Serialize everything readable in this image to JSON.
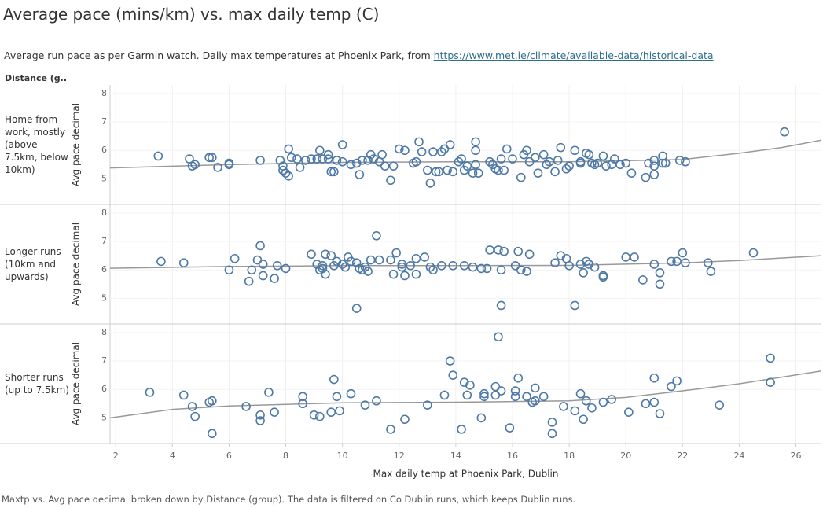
{
  "chart_data": {
    "type": "scatter",
    "title": "Average pace (mins/km) vs. max daily temp (C)",
    "subtitle": "Average run pace as per Garmin watch. Daily max temperatures at Phoenix Park, from",
    "subtitle_link": "https://www.met.ie/climate/available-data/historical-data",
    "facet_header": "Distance (g..",
    "x_label": "Max daily temp at Phoenix Park, Dublin",
    "y_label": "Avg pace decimal",
    "footnote": "Maxtp vs. Avg pace decimal broken down by Distance (group). The data is filtered on Co Dublin runs, which keeps Dublin runs.",
    "xlim": [
      1.8,
      26.9
    ],
    "xticks": [
      2,
      4,
      6,
      8,
      10,
      12,
      14,
      16,
      18,
      20,
      22,
      24,
      26
    ],
    "ylim": [
      4.1,
      8.3
    ],
    "yticks": [
      5,
      6,
      7,
      8
    ],
    "color": "#4e79a7",
    "trend_color": "#999999",
    "grid": true,
    "panels": [
      {
        "label": "Home from work, mostly (above 7.5km, below 10km)",
        "x": [
          3.5,
          4.6,
          4.7,
          4.8,
          5.3,
          5.4,
          5.6,
          6,
          6,
          7.1,
          7.8,
          7.9,
          7.9,
          8,
          8.1,
          8.1,
          8.2,
          8.4,
          8.5,
          8.7,
          8.9,
          9.1,
          9.2,
          9.3,
          9.5,
          9.5,
          9.6,
          9.7,
          9.8,
          10,
          10,
          10.3,
          10.5,
          10.6,
          10.7,
          10.9,
          11,
          11.1,
          11.3,
          11.4,
          11.5,
          11.7,
          11.8,
          12,
          12.2,
          12.5,
          12.6,
          12.7,
          12.8,
          13,
          13.1,
          13.2,
          13.3,
          13.4,
          13.5,
          13.6,
          13.7,
          13.8,
          13.9,
          14.1,
          14.2,
          14.3,
          14.4,
          14.6,
          14.7,
          14.7,
          14.7,
          14.8,
          15.2,
          15.3,
          15.4,
          15.5,
          15.6,
          15.7,
          15.8,
          16,
          16.3,
          16.4,
          16.5,
          16.6,
          16.8,
          16.9,
          17.1,
          17.2,
          17.3,
          17.5,
          17.6,
          17.7,
          17.9,
          18,
          18.2,
          18.4,
          18.4,
          18.6,
          18.7,
          18.8,
          18.9,
          19,
          19.2,
          19.3,
          19.5,
          19.6,
          19.8,
          20,
          20.2,
          20.7,
          20.8,
          21,
          21,
          21,
          21.3,
          21.3,
          21.4,
          21.9,
          22.1,
          25.6
        ],
        "y": [
          5.8,
          5.7,
          5.45,
          5.5,
          5.75,
          5.75,
          5.4,
          5.5,
          5.55,
          5.65,
          5.65,
          5.45,
          5.3,
          5.2,
          6.05,
          5.1,
          5.75,
          5.7,
          5.4,
          5.65,
          5.7,
          5.7,
          6,
          5.7,
          5.85,
          5.7,
          5.25,
          5.25,
          5.65,
          6.2,
          5.6,
          5.5,
          5.55,
          5.15,
          5.65,
          5.65,
          5.85,
          5.7,
          5.6,
          5.85,
          5.45,
          4.95,
          5.45,
          6.05,
          6,
          5.55,
          5.6,
          6.3,
          5.95,
          5.3,
          4.85,
          5.95,
          5.25,
          5.25,
          5.95,
          6.05,
          5.3,
          6.2,
          5.25,
          5.6,
          5.7,
          5.3,
          5.45,
          5.2,
          5.5,
          6.3,
          6,
          5.2,
          5.6,
          5.5,
          5.35,
          5.3,
          5.7,
          5.3,
          6.05,
          5.7,
          5.05,
          5.85,
          6,
          5.6,
          5.75,
          5.2,
          5.85,
          5.5,
          5.6,
          5.25,
          5.65,
          6.1,
          5.35,
          5.45,
          6,
          5.6,
          5.55,
          5.9,
          5.85,
          5.55,
          5.5,
          5.55,
          5.8,
          5.45,
          5.5,
          5.7,
          5.5,
          5.55,
          5.2,
          5.05,
          5.55,
          5.65,
          5.45,
          5.15,
          5.8,
          5.55,
          5.55,
          5.65,
          5.6,
          6.65
        ],
        "trend": {
          "x": [
            1.8,
            6,
            10,
            14,
            18,
            22,
            24,
            25.5,
            26.9
          ],
          "y": [
            5.38,
            5.5,
            5.58,
            5.6,
            5.6,
            5.68,
            5.9,
            6.1,
            6.36
          ]
        }
      },
      {
        "label": "Longer runs (10km and upwards)",
        "x": [
          3.6,
          4.4,
          6,
          6.2,
          6.7,
          6.8,
          7,
          7.1,
          7.2,
          7.2,
          7.6,
          7.7,
          8,
          8.9,
          9.1,
          9.2,
          9.3,
          9.3,
          9.4,
          9.4,
          9.6,
          9.7,
          9.8,
          10,
          10.1,
          10.2,
          10.3,
          10.5,
          10.5,
          10.6,
          10.7,
          10.8,
          10.9,
          11,
          11.2,
          11.3,
          11.7,
          11.8,
          11.9,
          12.1,
          12.1,
          12.2,
          12.4,
          12.6,
          12.6,
          12.9,
          13.1,
          13.2,
          13.5,
          13.9,
          14.3,
          14.6,
          14.9,
          15.1,
          15.2,
          15.5,
          15.6,
          15.6,
          15.7,
          16.1,
          16.2,
          16.3,
          16.5,
          16.6,
          17.5,
          17.7,
          17.9,
          18,
          18.2,
          18.4,
          18.5,
          18.6,
          18.7,
          18.9,
          19.2,
          19.2,
          20,
          20.3,
          20.6,
          21,
          21.2,
          21.2,
          21.6,
          21.8,
          22,
          22.1,
          22.9,
          23,
          24.5
        ],
        "y": [
          6.3,
          6.25,
          6,
          6.4,
          5.6,
          6,
          6.35,
          6.85,
          5.8,
          6.2,
          5.7,
          6.15,
          6.05,
          6.55,
          6.2,
          6,
          6.05,
          6.15,
          5.85,
          6.55,
          6.5,
          6.15,
          6.3,
          6.2,
          6.1,
          6.45,
          6.3,
          6.25,
          4.65,
          6.05,
          6,
          6.1,
          5.95,
          6.35,
          7.2,
          6.35,
          6.35,
          5.85,
          6.6,
          6.2,
          6.1,
          5.8,
          6.15,
          5.85,
          6.4,
          6.45,
          6.1,
          6,
          6.15,
          6.15,
          6.15,
          6.1,
          6.05,
          6.05,
          6.7,
          6.7,
          4.75,
          6,
          6.65,
          6.15,
          6.65,
          6,
          5.95,
          6.55,
          6.25,
          6.5,
          6.4,
          6.15,
          4.75,
          6.2,
          5.9,
          6.3,
          6.2,
          6.1,
          5.8,
          5.75,
          6.45,
          6.45,
          5.65,
          6.2,
          5.9,
          5.5,
          6.3,
          6.3,
          6.6,
          6.25,
          6.25,
          5.95,
          6.6
        ],
        "trend": {
          "x": [
            1.8,
            6,
            10,
            14,
            18,
            22,
            24,
            26.9
          ],
          "y": [
            6.06,
            6.12,
            6.15,
            6.15,
            6.16,
            6.25,
            6.33,
            6.5
          ]
        }
      },
      {
        "label": "Shorter runs (up to 7.5km)",
        "x": [
          3.2,
          4.4,
          4.7,
          4.8,
          5.3,
          5.4,
          5.4,
          6.6,
          7.1,
          7.1,
          7.4,
          7.6,
          8.6,
          8.6,
          9,
          9.2,
          9.6,
          9.7,
          9.8,
          9.9,
          10.3,
          10.8,
          11.2,
          11.7,
          12.2,
          13,
          13.6,
          13.8,
          13.9,
          14.2,
          14.3,
          14.4,
          14.5,
          14.9,
          15,
          15,
          15.4,
          15.4,
          15.5,
          15.6,
          15.9,
          16.1,
          16.1,
          16.2,
          16.5,
          16.7,
          16.8,
          16.8,
          17.1,
          17.4,
          17.4,
          17.8,
          18.2,
          18.4,
          18.5,
          18.6,
          18.8,
          19.2,
          19.5,
          20.1,
          20.7,
          21,
          21,
          21.2,
          21.6,
          21.8,
          23.3,
          25.1,
          25.1
        ],
        "y": [
          5.9,
          5.8,
          5.4,
          5.05,
          5.55,
          5.6,
          4.45,
          5.4,
          5.1,
          4.9,
          5.9,
          5.2,
          5.75,
          5.5,
          5.1,
          5.05,
          5.2,
          6.35,
          5.75,
          5.25,
          5.85,
          5.45,
          5.6,
          4.6,
          4.95,
          5.45,
          5.8,
          7,
          6.5,
          4.6,
          6.25,
          5.8,
          6.15,
          5,
          5.85,
          5.75,
          5.8,
          6.1,
          7.85,
          5.95,
          4.65,
          5.95,
          5.75,
          6.4,
          5.75,
          5.55,
          6.05,
          5.6,
          5.75,
          4.85,
          4.45,
          5.4,
          5.25,
          5.85,
          4.95,
          5.6,
          5.35,
          5.55,
          5.65,
          5.2,
          5.5,
          5.55,
          6.4,
          5.15,
          6.1,
          6.3,
          5.45,
          6.25,
          7.1
        ],
        "trend": {
          "x": [
            1.8,
            4,
            6,
            10,
            14,
            18,
            20,
            22,
            24,
            26.9
          ],
          "y": [
            5,
            5.3,
            5.42,
            5.53,
            5.55,
            5.6,
            5.72,
            5.95,
            6.2,
            6.65
          ]
        }
      }
    ]
  }
}
